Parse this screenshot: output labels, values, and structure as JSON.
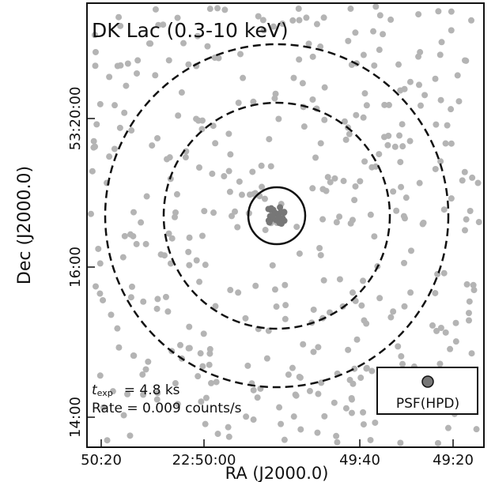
{
  "title": "DK Lac (0.3-10 keV)",
  "x_axis": {
    "label": "RA (J2000.0)",
    "ticks": [
      "50:20",
      "22:50:00",
      "49:40",
      "49:20"
    ]
  },
  "y_axis": {
    "label": "Dec (J2000.0)",
    "ticks": [
      "53:20:00",
      "16:00",
      "14:00"
    ]
  },
  "exposure": {
    "symbol": "t",
    "subscript": "exp",
    "text": "= 4.8 ks"
  },
  "rate": "Rate = 0.009 counts/s",
  "psf_label": "PSF(HPD)"
}
